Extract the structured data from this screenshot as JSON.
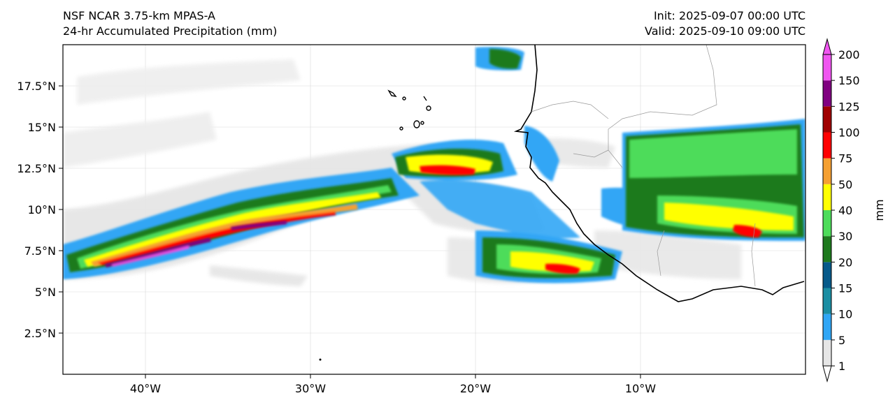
{
  "titles": {
    "left_line1": "NSF NCAR 3.75-km MPAS-A",
    "left_line2": "24-hr Accumulated Precipitation (mm)",
    "right_line1": "Init: 2025-09-07 00:00 UTC",
    "right_line2": "Valid: 2025-09-10 09:00 UTC"
  },
  "map": {
    "extent_lon": [
      -45,
      0
    ],
    "extent_lat": [
      0,
      20
    ],
    "lat_ticks": [
      {
        "value": 2.5,
        "label": "2.5°N"
      },
      {
        "value": 5,
        "label": "5°N"
      },
      {
        "value": 7.5,
        "label": "7.5°N"
      },
      {
        "value": 10,
        "label": "10°N"
      },
      {
        "value": 12.5,
        "label": "12.5°N"
      },
      {
        "value": 15,
        "label": "15°N"
      },
      {
        "value": 17.5,
        "label": "17.5°N"
      }
    ],
    "lon_ticks": [
      {
        "value": -40,
        "label": "40°W"
      },
      {
        "value": -30,
        "label": "30°W"
      },
      {
        "value": -20,
        "label": "20°W"
      },
      {
        "value": -10,
        "label": "10°W"
      }
    ],
    "gridlines": true
  },
  "colorbar": {
    "label": "mm",
    "levels": [
      "1",
      "5",
      "10",
      "15",
      "20",
      "30",
      "40",
      "50",
      "75",
      "100",
      "125",
      "150",
      "200"
    ],
    "colors": [
      "#e6e6e6",
      "#30a6f5",
      "#1b8ea3",
      "#065a8a",
      "#1e7a1e",
      "#4ddc5a",
      "#ffff00",
      "#f5a032",
      "#ff0000",
      "#a00000",
      "#800080",
      "#f055f0"
    ],
    "extend": "both"
  }
}
